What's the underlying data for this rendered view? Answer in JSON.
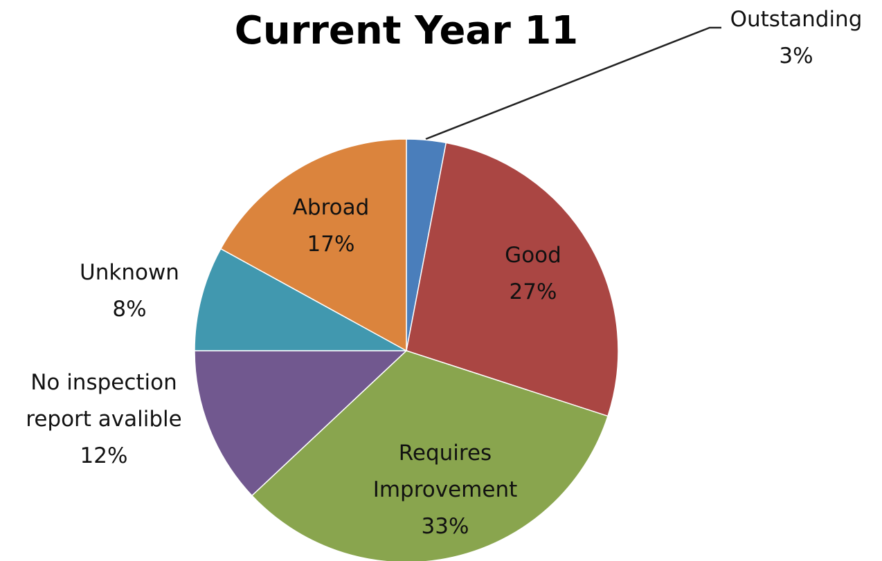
{
  "chart_data": {
    "type": "pie",
    "title": "Current Year 11",
    "categories": [
      "Outstanding",
      "Good",
      "Requires Improvement",
      "No inspection report avalible",
      "Unknown",
      "Abroad"
    ],
    "values": [
      3,
      27,
      33,
      12,
      8,
      17
    ],
    "value_labels": [
      "3%",
      "27%",
      "33%",
      "12%",
      "8%",
      "17%"
    ],
    "colors": [
      "#4a7ebb",
      "#aa4643",
      "#89a54e",
      "#71588f",
      "#4198af",
      "#db843d"
    ]
  }
}
